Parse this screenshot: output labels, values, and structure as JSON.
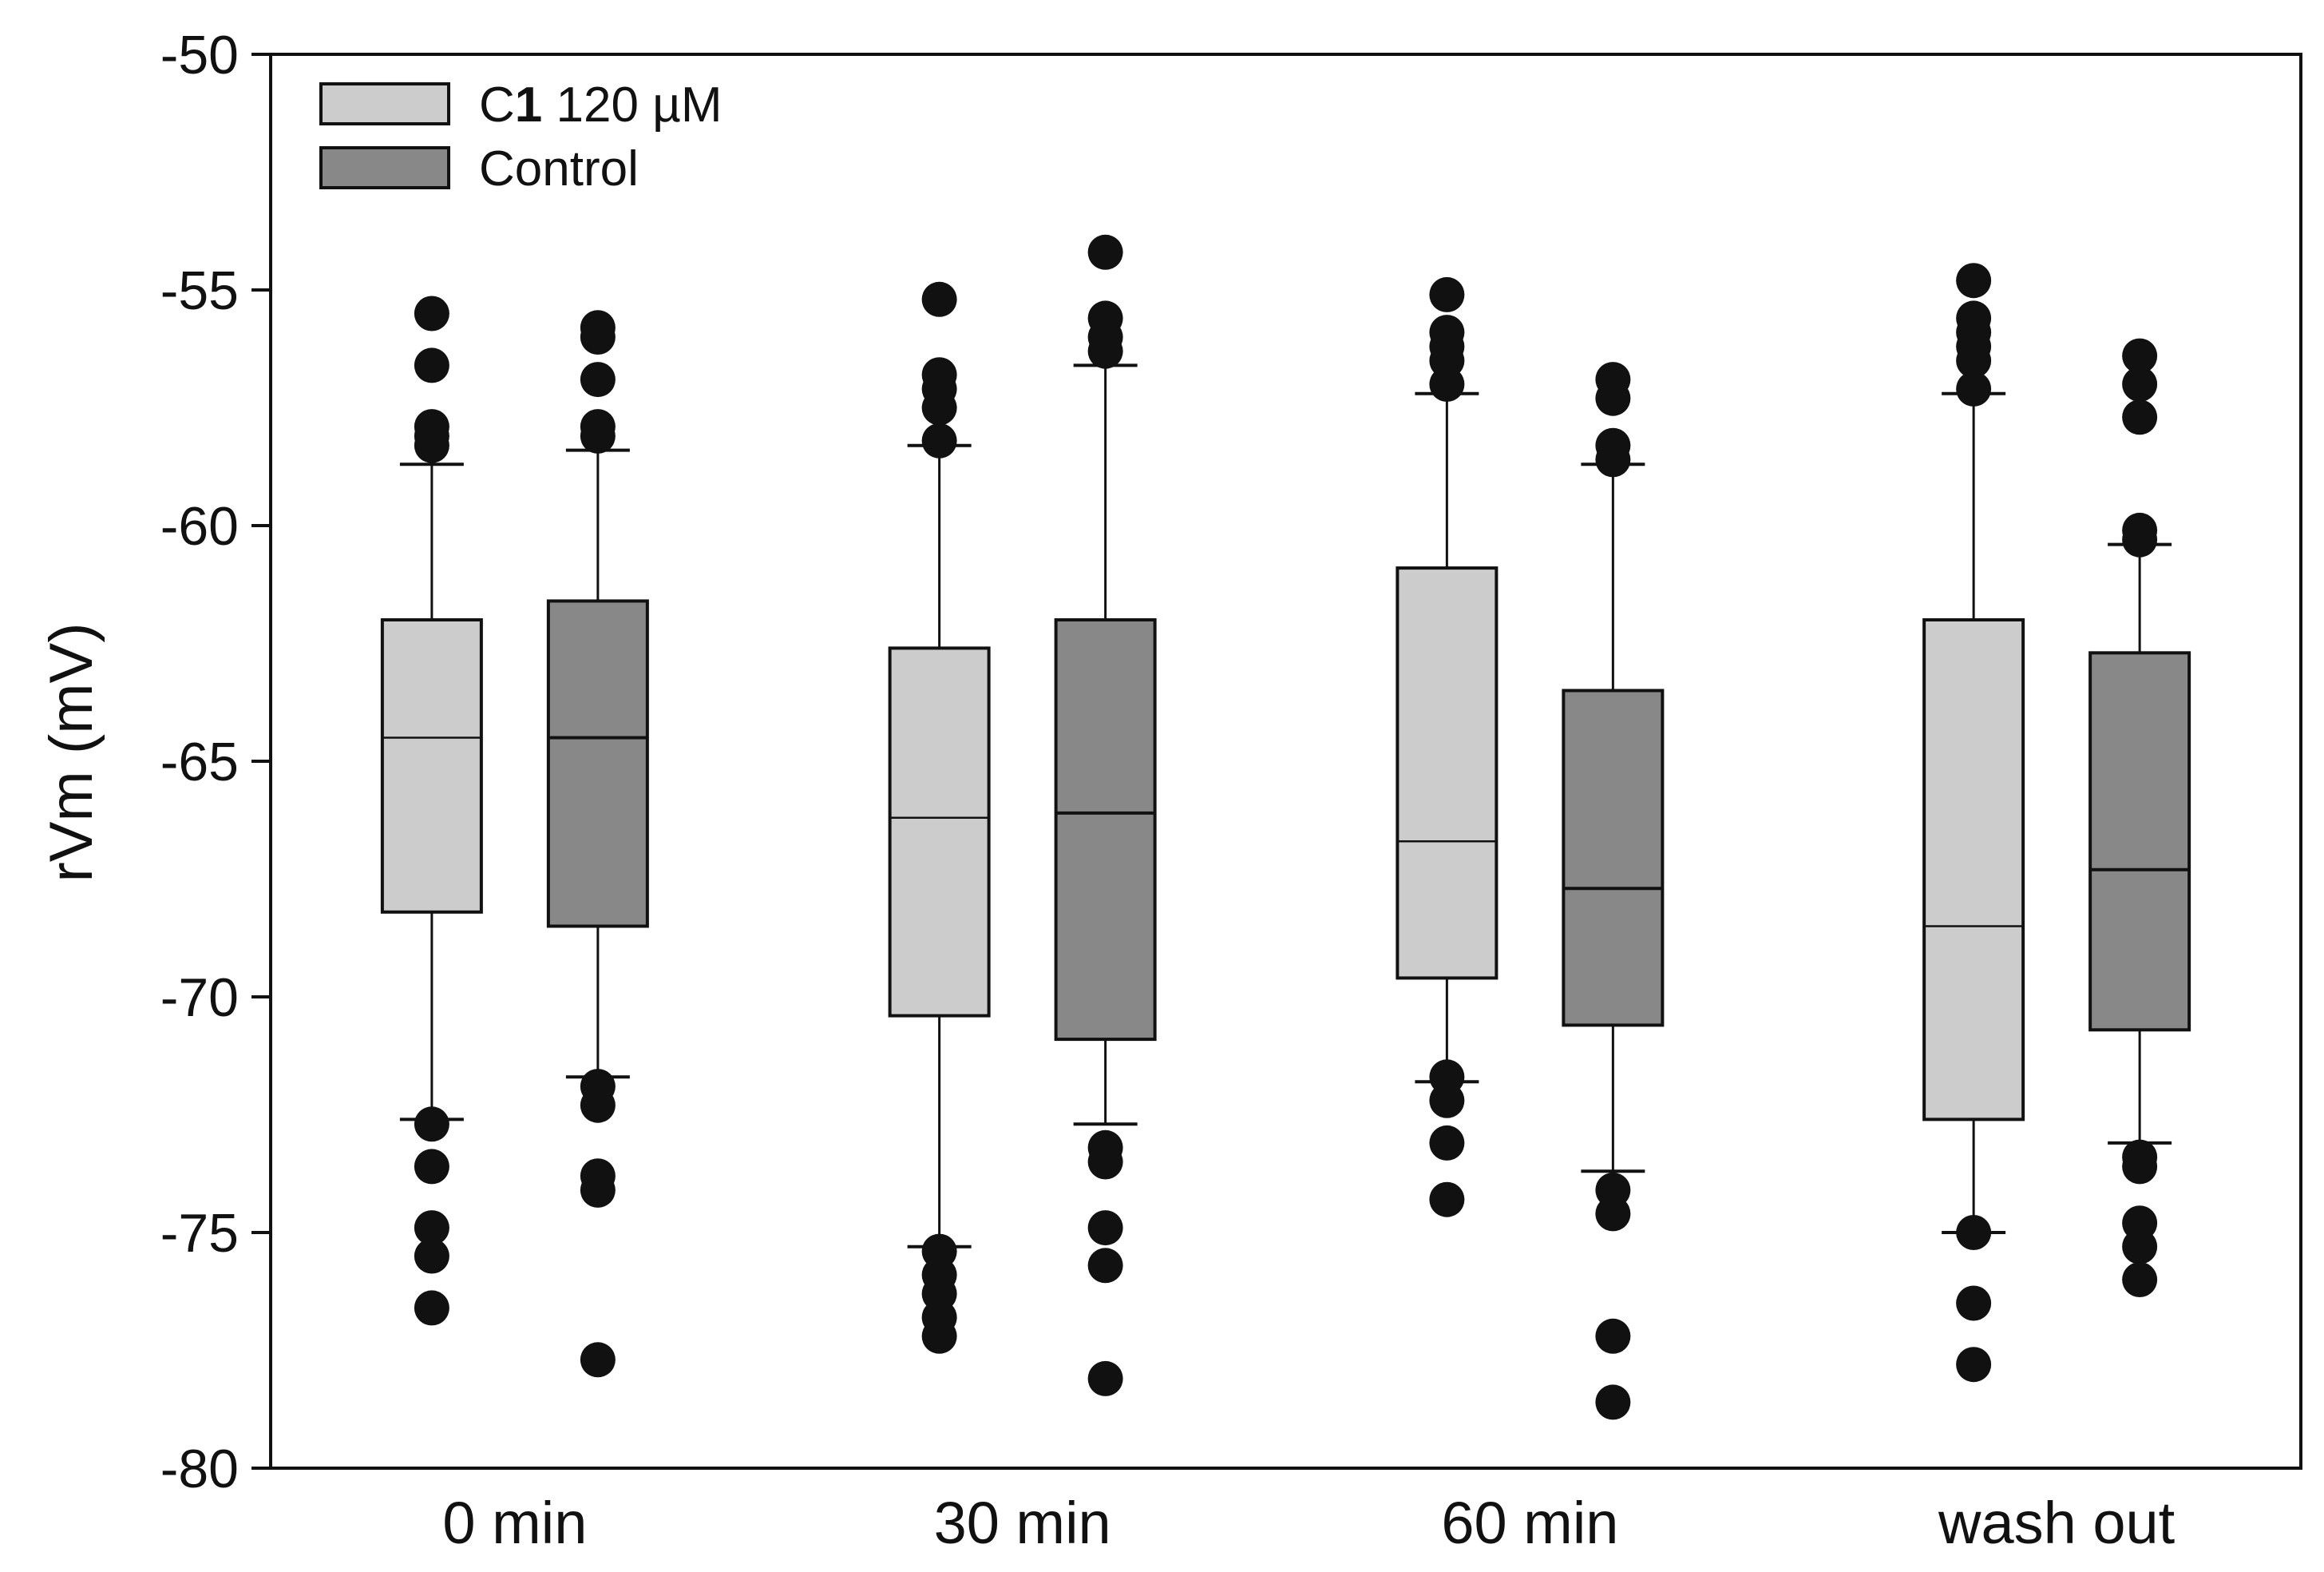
{
  "chart_data": {
    "type": "box",
    "title": "",
    "xlabel": "",
    "ylabel": "rVm (mV)",
    "ylim": [
      -80,
      -50
    ],
    "yticks": [
      -50,
      -55,
      -60,
      -65,
      -70,
      -75,
      -80
    ],
    "categories": [
      "0 min",
      "30 min",
      "60 min",
      "wash out"
    ],
    "legend": {
      "placement": "top-left",
      "entries": [
        {
          "prefix": "C",
          "bold": "1",
          "suffix": " 120 µM"
        },
        {
          "text": "Control"
        }
      ]
    },
    "series": [
      {
        "name": "C1 120 µM",
        "color": "#cccccc",
        "boxes": [
          {
            "whisker_high": -58.7,
            "q3": -62.0,
            "median": -64.5,
            "q1": -68.2,
            "whisker_low": -72.6,
            "outliers": [
              -55.5,
              -56.6,
              -57.9,
              -58.1,
              -58.3,
              -72.7,
              -73.6,
              -74.9,
              -75.5,
              -76.6
            ]
          },
          {
            "whisker_high": -58.3,
            "q3": -62.6,
            "median": -66.2,
            "q1": -70.4,
            "whisker_low": -75.3,
            "outliers": [
              -55.2,
              -56.8,
              -57.1,
              -57.5,
              -58.2,
              -75.4,
              -75.9,
              -76.3,
              -76.8,
              -77.2
            ]
          },
          {
            "whisker_high": -57.2,
            "q3": -60.9,
            "median": -66.7,
            "q1": -69.6,
            "whisker_low": -71.8,
            "outliers": [
              -55.1,
              -55.9,
              -56.2,
              -56.5,
              -57.0,
              -71.7,
              -72.2,
              -73.1,
              -74.3
            ]
          },
          {
            "whisker_high": -57.2,
            "q3": -62.0,
            "median": -68.5,
            "q1": -72.6,
            "whisker_low": -75.0,
            "outliers": [
              -54.8,
              -55.6,
              -55.9,
              -56.2,
              -56.5,
              -57.1,
              -75.0,
              -76.5,
              -77.8
            ]
          }
        ]
      },
      {
        "name": "Control",
        "color": "#888888",
        "boxes": [
          {
            "whisker_high": -58.4,
            "q3": -61.6,
            "median": -64.5,
            "q1": -68.5,
            "whisker_low": -71.7,
            "outliers": [
              -55.8,
              -56.0,
              -56.9,
              -57.9,
              -58.1,
              -71.9,
              -72.3,
              -73.8,
              -74.1,
              -77.7
            ]
          },
          {
            "whisker_high": -56.6,
            "q3": -62.0,
            "median": -66.1,
            "q1": -70.9,
            "whisker_low": -72.7,
            "outliers": [
              -54.2,
              -55.6,
              -56.0,
              -56.3,
              -73.2,
              -73.5,
              -74.9,
              -75.7,
              -78.1
            ]
          },
          {
            "whisker_high": -58.7,
            "q3": -63.5,
            "median": -67.7,
            "q1": -70.6,
            "whisker_low": -73.7,
            "outliers": [
              -56.9,
              -57.3,
              -58.3,
              -58.6,
              -74.1,
              -74.6,
              -77.2,
              -78.6
            ]
          },
          {
            "whisker_high": -60.4,
            "q3": -62.7,
            "median": -67.3,
            "q1": -70.7,
            "whisker_low": -73.1,
            "outliers": [
              -56.4,
              -57.0,
              -57.7,
              -60.1,
              -60.3,
              -73.4,
              -73.6,
              -74.8,
              -75.3,
              -76.0
            ]
          }
        ]
      }
    ]
  }
}
